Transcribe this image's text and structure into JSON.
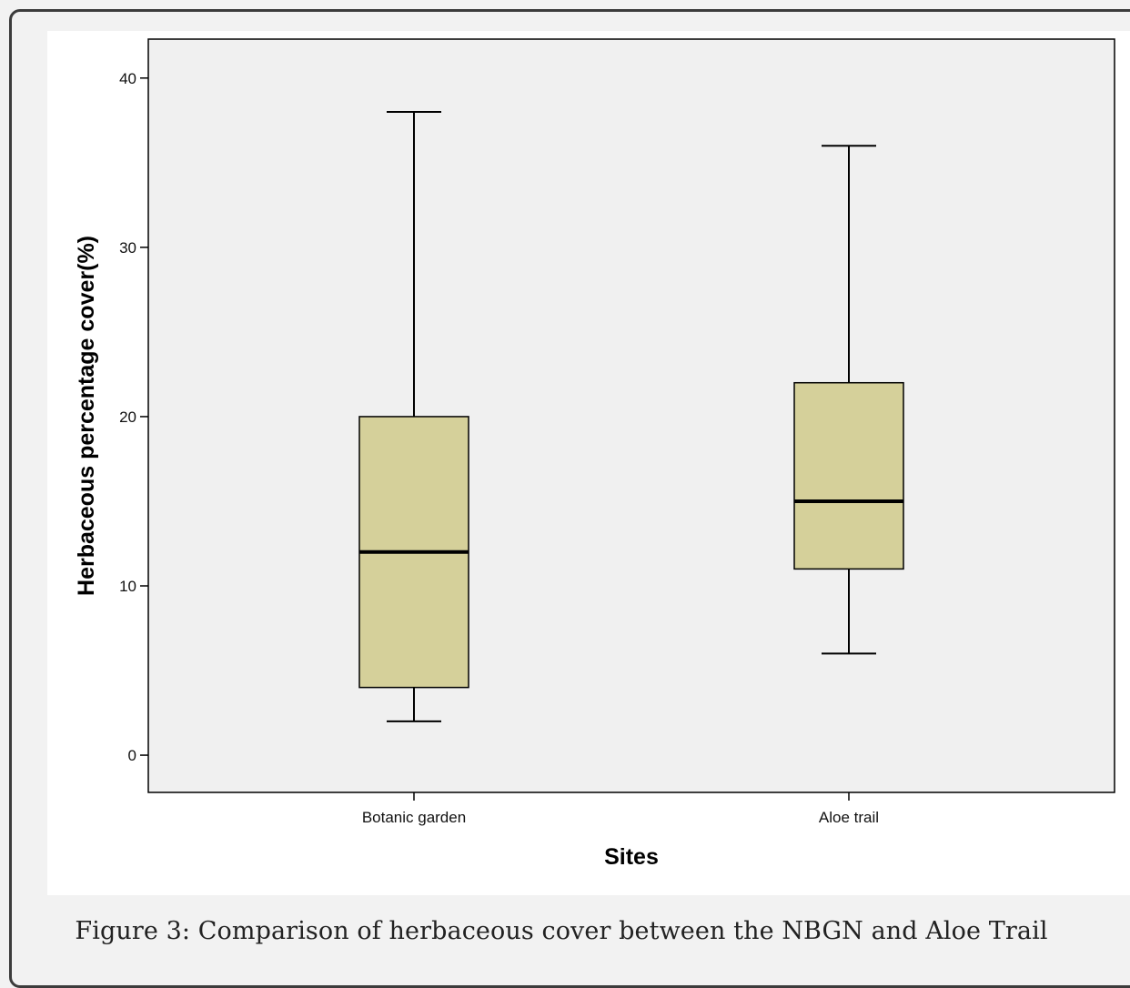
{
  "caption": "Figure 3: Comparison of herbaceous cover between the NBGN and Aloe Trail",
  "chart_data": {
    "type": "box",
    "title": "",
    "xlabel": "Sites",
    "ylabel": "Herbaceous percentage cover(%)",
    "categories": [
      "Botanic garden",
      "Aloe trail"
    ],
    "boxes": [
      {
        "category": "Botanic garden",
        "min": 2,
        "q1": 4,
        "median": 12,
        "q3": 20,
        "max": 38
      },
      {
        "category": "Aloe trail",
        "min": 6,
        "q1": 11,
        "median": 15,
        "q3": 22,
        "max": 36
      }
    ],
    "yticks": [
      0,
      10,
      20,
      30,
      40
    ],
    "ylim": [
      -2.2,
      42.3
    ],
    "grid": false,
    "colors": {
      "box_fill": "#d5d09a",
      "plot_bg": "#f0f0f0",
      "line": "#000000"
    }
  }
}
